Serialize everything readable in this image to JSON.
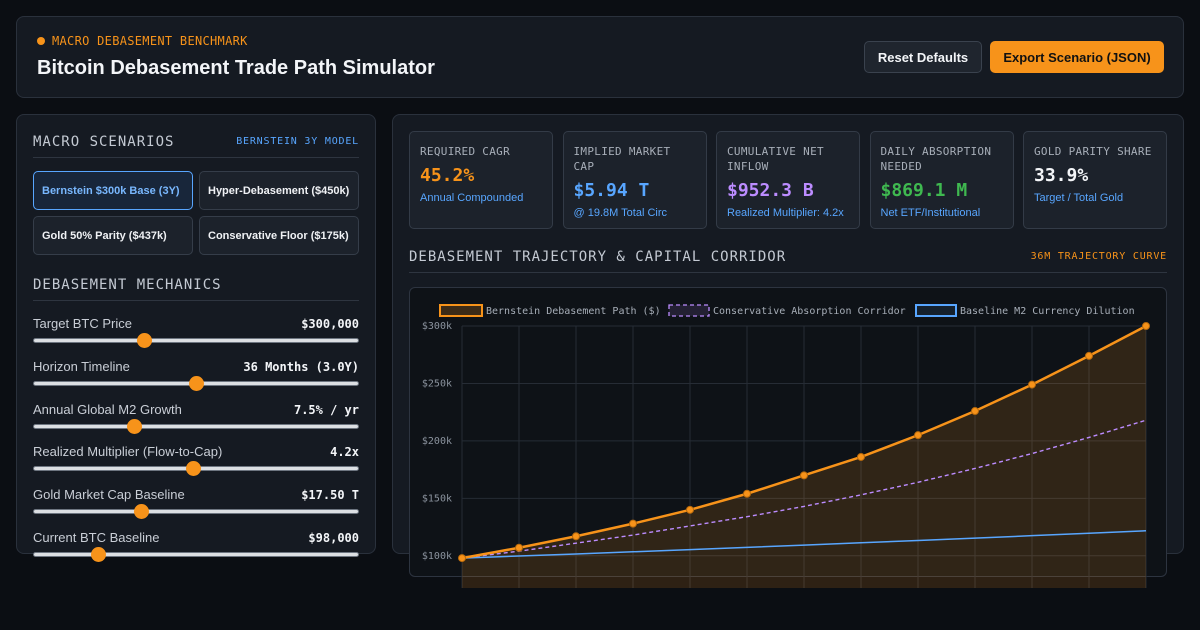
{
  "header": {
    "kicker": "MACRO DEBASEMENT BENCHMARK",
    "title": "Bitcoin Debasement Trade Path Simulator",
    "reset_label": "Reset Defaults",
    "export_label": "Export Scenario (JSON)"
  },
  "scenarios": {
    "title": "MACRO SCENARIOS",
    "tag": "BERNSTEIN 3Y MODEL",
    "items": [
      {
        "label": "Bernstein $300k Base (3Y)",
        "active": true
      },
      {
        "label": "Hyper-Debasement ($450k)",
        "active": false
      },
      {
        "label": "Gold 50% Parity ($437k)",
        "active": false
      },
      {
        "label": "Conservative Floor ($175k)",
        "active": false
      }
    ]
  },
  "mechanics": {
    "title": "DEBASEMENT MECHANICS",
    "sliders": [
      {
        "label": "Target BTC Price",
        "value": "$300,000",
        "fraction": 0.34
      },
      {
        "label": "Horizon Timeline",
        "value": "36 Months (3.0Y)",
        "fraction": 0.5
      },
      {
        "label": "Annual Global M2 Growth",
        "value": "7.5% / yr",
        "fraction": 0.31
      },
      {
        "label": "Realized Multiplier (Flow-to-Cap)",
        "value": "4.2x",
        "fraction": 0.49
      },
      {
        "label": "Gold Market Cap Baseline",
        "value": "$17.50 T",
        "fraction": 0.33
      },
      {
        "label": "Current BTC Baseline",
        "value": "$98,000",
        "fraction": 0.2
      }
    ]
  },
  "kpis": [
    {
      "label": "REQUIRED CAGR",
      "value": "45.2%",
      "sub": "Annual Compounded",
      "color": "#f7931a"
    },
    {
      "label": "IMPLIED MARKET CAP",
      "value": "$5.94 T",
      "sub": "@ 19.8M Total Circ",
      "color": "#58a6ff"
    },
    {
      "label": "CUMULATIVE NET INFLOW",
      "value": "$952.3 B",
      "sub": "Realized Multiplier: 4.2x",
      "color": "#bc8cff"
    },
    {
      "label": "DAILY ABSORPTION NEEDED",
      "value": "$869.1 M",
      "sub": "Net ETF/Institutional",
      "color": "#3fb950"
    },
    {
      "label": "GOLD PARITY SHARE",
      "value": "33.9%",
      "sub": "Target / Total Gold",
      "color": "#f3f5f8"
    }
  ],
  "chart_section": {
    "title": "DEBASEMENT TRAJECTORY & CAPITAL CORRIDOR",
    "tag": "36M TRAJECTORY CURVE"
  },
  "chart_data": {
    "type": "line",
    "x": [
      0,
      3,
      6,
      9,
      12,
      15,
      18,
      21,
      24,
      27,
      30,
      33,
      36
    ],
    "y_ticks": [
      "$300k",
      "$250k",
      "$200k",
      "$150k",
      "$100k"
    ],
    "ylim": [
      65000,
      300000
    ],
    "grid": true,
    "legend_placement": "top",
    "series": [
      {
        "name": "Bernstein Debasement Path ($)",
        "color": "#f7931a",
        "style": "solid-fill-markers",
        "values": [
          98000,
          107000,
          117000,
          128000,
          140000,
          154000,
          170000,
          186000,
          205000,
          226000,
          249000,
          274000,
          300000
        ]
      },
      {
        "name": "Conservative Absorption Corridor",
        "color": "#bc8cff",
        "style": "dashed",
        "values": [
          98000,
          104000,
          111000,
          118000,
          126000,
          134000,
          143000,
          153000,
          164000,
          176000,
          189000,
          203000,
          218000
        ]
      },
      {
        "name": "Baseline M2 Currency Dilution",
        "color": "#58a6ff",
        "style": "solid",
        "values": [
          98000,
          99800,
          101600,
          103500,
          105400,
          107300,
          109300,
          111300,
          113300,
          115400,
          117500,
          119600,
          121800
        ]
      }
    ]
  }
}
